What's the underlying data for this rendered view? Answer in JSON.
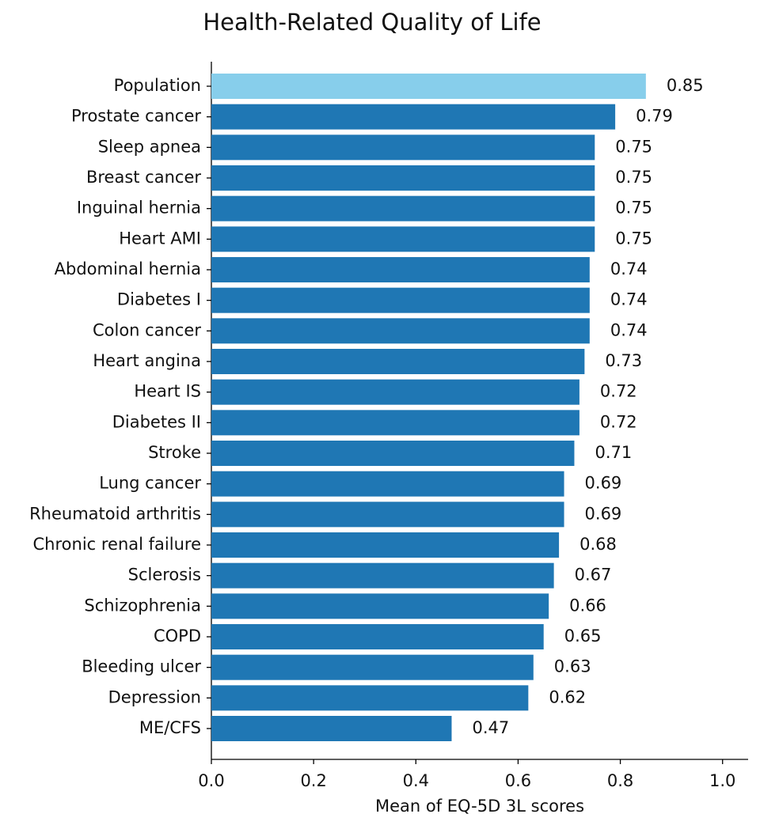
{
  "chart_data": {
    "type": "barh",
    "title": "Health-Related Quality of Life",
    "x_label": "Mean of EQ-5D 3L scores",
    "categories": [
      "Population",
      "Prostate cancer",
      "Sleep apnea",
      "Breast cancer",
      "Inguinal hernia",
      "Heart AMI",
      "Abdominal hernia",
      "Diabetes I",
      "Colon cancer",
      "Heart angina",
      "Heart IS",
      "Diabetes II",
      "Stroke",
      "Lung cancer",
      "Rheumatoid arthritis",
      "Chronic renal failure",
      "Sclerosis",
      "Schizophrenia",
      "COPD",
      "Bleeding ulcer",
      "Depression",
      "ME/CFS"
    ],
    "values": [
      0.85,
      0.79,
      0.75,
      0.75,
      0.75,
      0.75,
      0.74,
      0.74,
      0.74,
      0.73,
      0.72,
      0.72,
      0.71,
      0.69,
      0.69,
      0.68,
      0.67,
      0.66,
      0.65,
      0.63,
      0.62,
      0.47
    ],
    "colors": [
      "#87ceeb",
      "#1f77b4",
      "#1f77b4",
      "#1f77b4",
      "#1f77b4",
      "#1f77b4",
      "#1f77b4",
      "#1f77b4",
      "#1f77b4",
      "#1f77b4",
      "#1f77b4",
      "#1f77b4",
      "#1f77b4",
      "#1f77b4",
      "#1f77b4",
      "#1f77b4",
      "#1f77b4",
      "#1f77b4",
      "#1f77b4",
      "#1f77b4",
      "#1f77b4",
      "#1f77b4"
    ],
    "xlim": [
      0,
      1.05
    ],
    "xticks": [
      {
        "value": 0,
        "label": "0.0"
      },
      0.2,
      0.4,
      0.6,
      0.8,
      {
        "value": 1,
        "label": "1.0"
      }
    ],
    "grid": false
  }
}
